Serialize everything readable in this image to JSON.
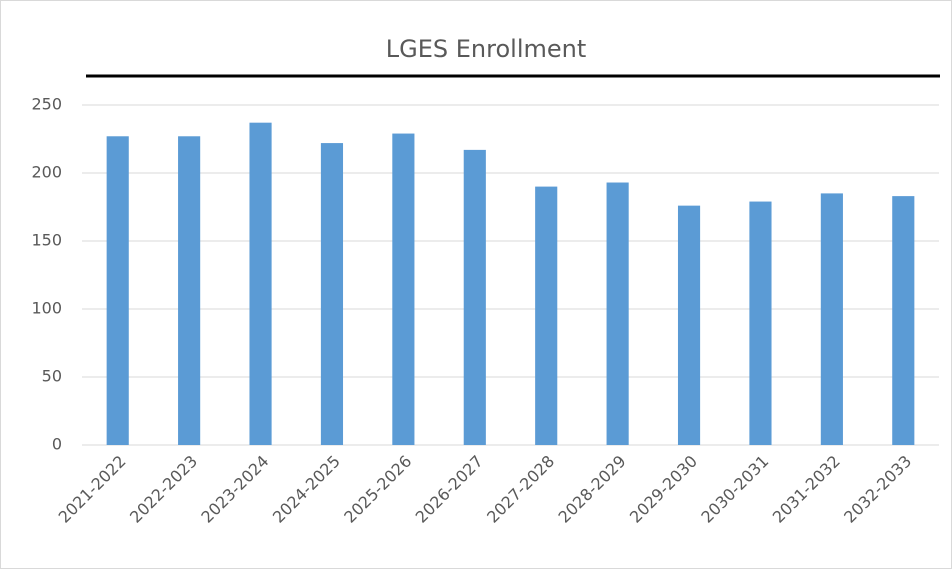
{
  "chart_data": {
    "type": "bar",
    "title": "LGES Enrollment",
    "categories": [
      "2021-2022",
      "2022-2023",
      "2023-2024",
      "2024-2025",
      "2025-2026",
      "2026-2027",
      "2027-2028",
      "2028-2029",
      "2029-2030",
      "2030-2031",
      "2031-2032",
      "2032-2033"
    ],
    "values": [
      227,
      227,
      237,
      222,
      229,
      217,
      190,
      193,
      176,
      179,
      185,
      183
    ],
    "color": "#5b9bd5",
    "ylim": [
      0,
      250
    ],
    "yticks": [
      0,
      50,
      100,
      150,
      200,
      250
    ],
    "grid": true
  }
}
